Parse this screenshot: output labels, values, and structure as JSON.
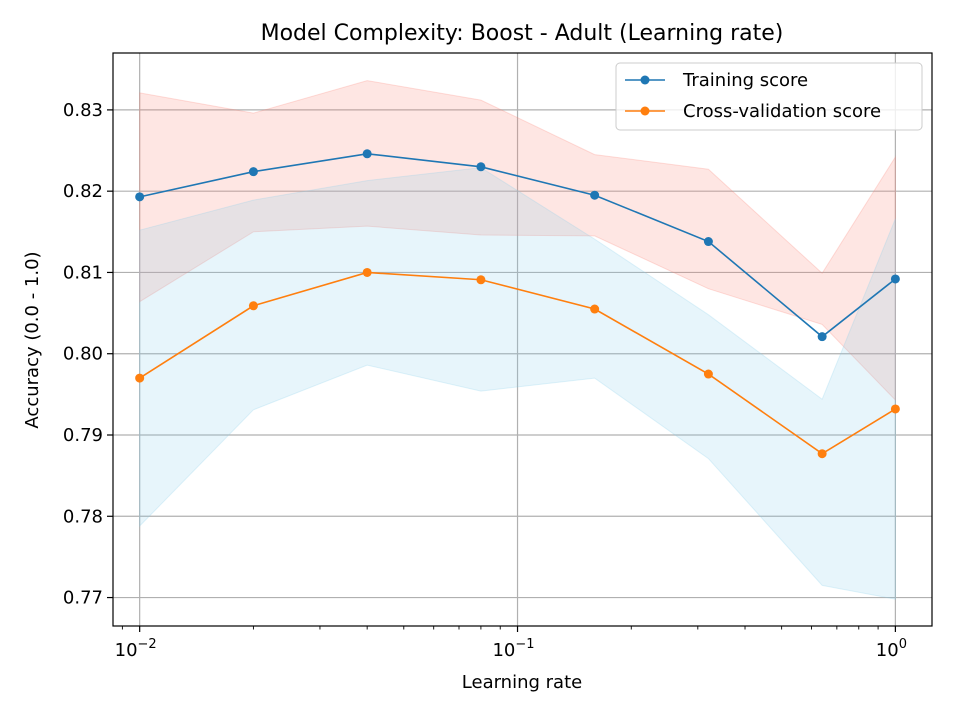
{
  "chart_data": {
    "type": "line",
    "title": "Model Complexity: Boost - Adult (Learning rate)",
    "xlabel": "Learning rate",
    "ylabel": "Accuracy (0.0 - 1.0)",
    "xscale": "log",
    "xlim": [
      0.0085,
      1.25
    ],
    "ylim": [
      0.7665,
      0.837
    ],
    "grid": true,
    "legend_position": "top-right",
    "x": [
      0.01,
      0.02,
      0.04,
      0.08,
      0.16,
      0.32,
      0.64,
      1.0
    ],
    "x_ticks": [
      {
        "value": 0.01,
        "base": "10",
        "exp": "−2"
      },
      {
        "value": 0.1,
        "base": "10",
        "exp": "−1"
      },
      {
        "value": 1.0,
        "base": "10",
        "exp": "0"
      }
    ],
    "y_ticks": [
      {
        "value": 0.77,
        "label": "0.77"
      },
      {
        "value": 0.78,
        "label": "0.78"
      },
      {
        "value": 0.79,
        "label": "0.79"
      },
      {
        "value": 0.8,
        "label": "0.80"
      },
      {
        "value": 0.81,
        "label": "0.81"
      },
      {
        "value": 0.82,
        "label": "0.82"
      },
      {
        "value": 0.83,
        "label": "0.83"
      }
    ],
    "series": [
      {
        "name": "Training score",
        "color": "#1f77b4",
        "band_color": "#fa8072",
        "values": [
          0.8193,
          0.8224,
          0.8246,
          0.823,
          0.8195,
          0.8138,
          0.8021,
          0.8092
        ],
        "band_upper": [
          0.8321,
          0.8296,
          0.8336,
          0.8312,
          0.8245,
          0.8227,
          0.8099,
          0.8242
        ],
        "band_lower": [
          0.8064,
          0.815,
          0.8157,
          0.8146,
          0.8145,
          0.808,
          0.8036,
          0.7943
        ]
      },
      {
        "name": "Cross-validation score",
        "color": "#ff7f0e",
        "band_color": "#87ceeb",
        "values": [
          0.797,
          0.8059,
          0.81,
          0.8091,
          0.8055,
          0.7975,
          0.7877,
          0.7932
        ],
        "band_upper": [
          0.8152,
          0.8189,
          0.8213,
          0.8229,
          0.8141,
          0.8048,
          0.7944,
          0.8166
        ],
        "band_lower": [
          0.7788,
          0.7931,
          0.7986,
          0.7954,
          0.797,
          0.7871,
          0.7715,
          0.7698
        ]
      }
    ]
  }
}
